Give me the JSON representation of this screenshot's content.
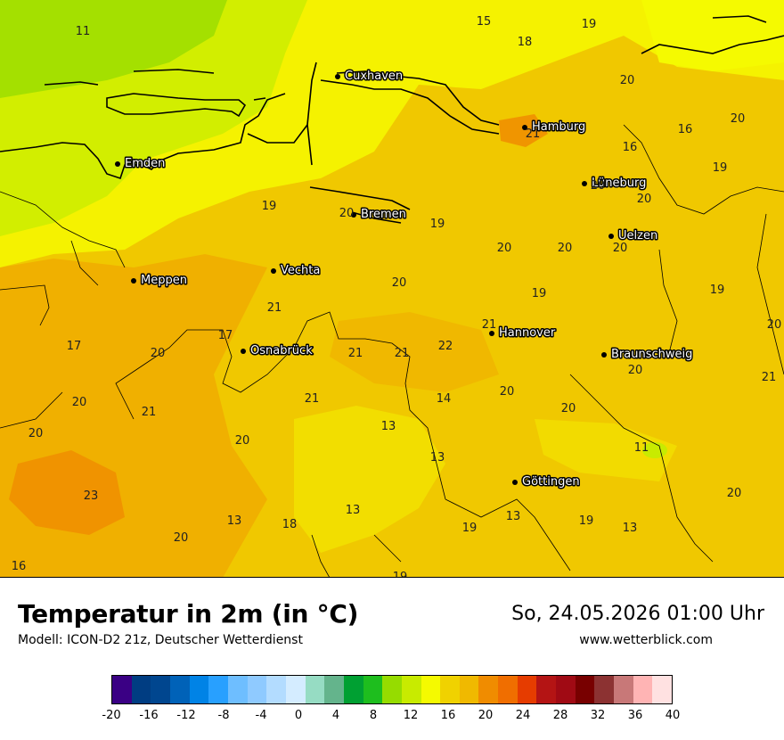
{
  "title": "Temperatur in 2m (in °C)",
  "model": "Modell: ICON-D2 21z, Deutscher Wetterdienst",
  "datetime": "So, 24.05.2026 01:00 Uhr",
  "website": "www.wetterblick.com",
  "cities": [
    {
      "name": "Cuxhaven"
    },
    {
      "name": "Hamburg"
    },
    {
      "name": "Emden"
    },
    {
      "name": "Lüneburg"
    },
    {
      "name": "Bremen"
    },
    {
      "name": "Uelzen"
    },
    {
      "name": "Vechta"
    },
    {
      "name": "Meppen"
    },
    {
      "name": "Hannover"
    },
    {
      "name": "Osnabrück"
    },
    {
      "name": "Braunschweig"
    },
    {
      "name": "Göttingen"
    }
  ],
  "temperature_labels": [
    "11",
    "15",
    "18",
    "19",
    "20",
    "20",
    "21",
    "16",
    "16",
    "19",
    "20",
    "20",
    "19",
    "19",
    "20",
    "20",
    "20",
    "20",
    "19",
    "19",
    "21",
    "22",
    "21",
    "21",
    "17",
    "17",
    "20",
    "20",
    "21",
    "20",
    "20",
    "14",
    "20",
    "20",
    "21",
    "13",
    "20",
    "11",
    "13",
    "23",
    "20",
    "13",
    "13",
    "13",
    "19",
    "19",
    "13",
    "18",
    "20",
    "16",
    "19"
  ],
  "legend": {
    "colors": [
      "#3a0084",
      "#003d82",
      "#00468f",
      "#0062b8",
      "#0083e6",
      "#28a0ff",
      "#6ebeff",
      "#8fcaff",
      "#b3dcff",
      "#d4ecff",
      "#96dcc3",
      "#64b48c",
      "#00a032",
      "#1ebe1e",
      "#96dc00",
      "#c8eb00",
      "#f5fa00",
      "#f0d200",
      "#f0b900",
      "#f08c00",
      "#f06e00",
      "#e63c00",
      "#b41414",
      "#a00a14",
      "#780000",
      "#8c3232",
      "#c87878",
      "#ffb4b4",
      "#ffe1e1"
    ],
    "ticks": [
      "-20",
      "-16",
      "-12",
      "-8",
      "-4",
      "0",
      "4",
      "8",
      "12",
      "16",
      "20",
      "24",
      "28",
      "32",
      "36",
      "40"
    ],
    "range": [
      -20,
      40
    ],
    "step": 2
  },
  "colors": {
    "mild_green": "#96dc00",
    "light_green": "#c8eb00",
    "yellow": "#f5fa00",
    "yellow_orange": "#f0d200",
    "orange": "#f0b900",
    "dark_orange": "#f08c00"
  }
}
